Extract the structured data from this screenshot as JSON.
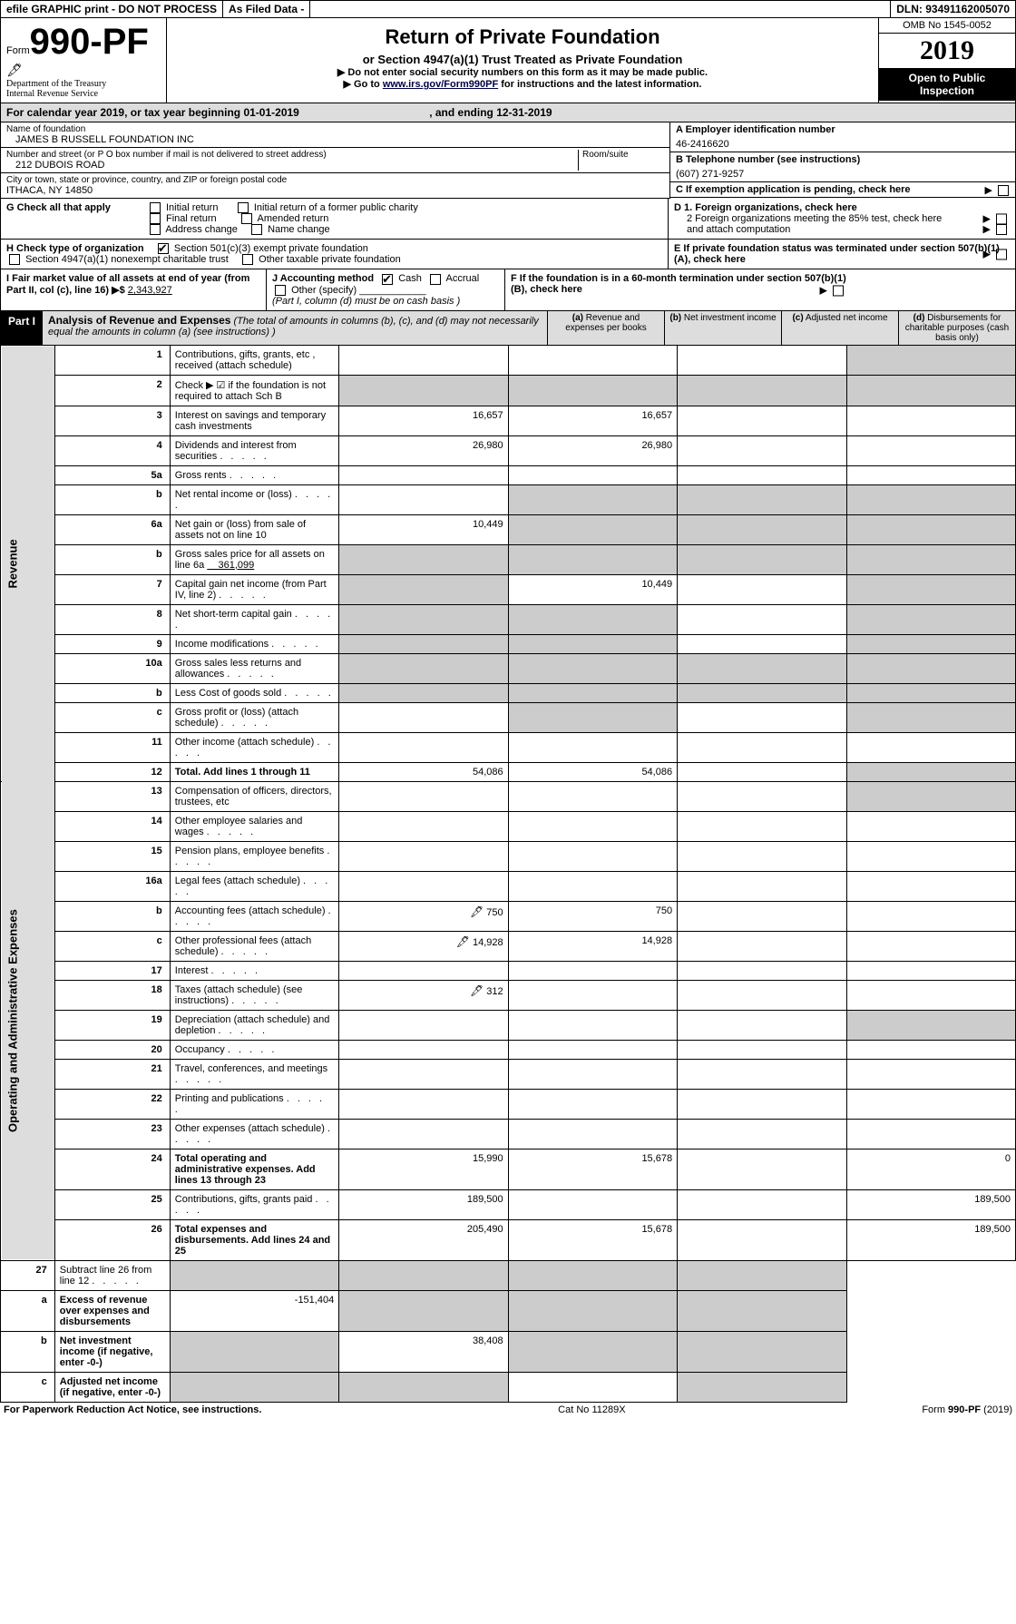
{
  "topbar": {
    "efile": "efile GRAPHIC print - DO NOT PROCESS",
    "asfiled": "As Filed Data -",
    "dln": "DLN: 93491162005070"
  },
  "header": {
    "form_word": "Form",
    "form_num": "990-PF",
    "dept1": "Department of the Treasury",
    "dept2": "Internal Revenue Service",
    "title": "Return of Private Foundation",
    "subtitle": "or Section 4947(a)(1) Trust Treated as Private Foundation",
    "instr1": "▶ Do not enter social security numbers on this form as it may be made public.",
    "instr2_pre": "▶ Go to ",
    "instr2_link": "www.irs.gov/Form990PF",
    "instr2_post": " for instructions and the latest information.",
    "omb": "OMB No 1545-0052",
    "year": "2019",
    "open": "Open to Public Inspection"
  },
  "calrow": {
    "text_pre": "For calendar year 2019, or tax year beginning ",
    "begin": "01-01-2019",
    "mid": " , and ending ",
    "end": "12-31-2019"
  },
  "info": {
    "name_label": "Name of foundation",
    "name": "JAMES B RUSSELL FOUNDATION INC",
    "addr_label": "Number and street (or P O  box number if mail is not delivered to street address)",
    "addr": "212 DUBOIS ROAD",
    "room_label": "Room/suite",
    "city_label": "City or town, state or province, country, and ZIP or foreign postal code",
    "city": "ITHACA, NY  14850",
    "a_label": "A Employer identification number",
    "a_val": "46-2416620",
    "b_label": "B Telephone number (see instructions)",
    "b_val": "(607) 271-9257",
    "c_label": "C If exemption application is pending, check here",
    "d1": "D 1. Foreign organizations, check here",
    "d2": "2 Foreign organizations meeting the 85% test, check here and attach computation",
    "e": "E  If private foundation status was terminated under section 507(b)(1)(A), check here",
    "f": "F  If the foundation is in a 60-month termination under section 507(b)(1)(B), check here"
  },
  "g": {
    "label": "G Check all that apply",
    "o1": "Initial return",
    "o2": "Initial return of a former public charity",
    "o3": "Final return",
    "o4": "Amended return",
    "o5": "Address change",
    "o6": "Name change"
  },
  "h": {
    "label": "H Check type of organization",
    "o1": "Section 501(c)(3) exempt private foundation",
    "o2": "Section 4947(a)(1) nonexempt charitable trust",
    "o3": "Other taxable private foundation"
  },
  "i": {
    "label": "I Fair market value of all assets at end of year (from Part II, col  (c), line 16) ▶$",
    "val": "2,343,927"
  },
  "j": {
    "label": "J Accounting method",
    "cash": "Cash",
    "accrual": "Accrual",
    "other": "Other (specify)",
    "note": "(Part I, column (d) must be on cash basis )"
  },
  "part1": {
    "label": "Part I",
    "title": "Analysis of Revenue and Expenses",
    "note": " (The total of amounts in columns (b), (c), and (d) may not necessarily equal the amounts in column (a) (see instructions) )",
    "col_a": "(a) Revenue and expenses per books",
    "col_b": "(b) Net investment income",
    "col_c": "(c) Adjusted net income",
    "col_d": "(d) Disbursements for charitable purposes (cash basis only)"
  },
  "revenue_label": "Revenue",
  "expenses_label": "Operating and Administrative Expenses",
  "lines": {
    "l1": {
      "n": "1",
      "d": "Contributions, gifts, grants, etc , received (attach schedule)"
    },
    "l2": {
      "n": "2",
      "d": "Check ▶ ☑ if the foundation is not required to attach Sch  B"
    },
    "l3": {
      "n": "3",
      "d": "Interest on savings and temporary cash investments",
      "a": "16,657",
      "b": "16,657"
    },
    "l4": {
      "n": "4",
      "d": "Dividends and interest from securities",
      "a": "26,980",
      "b": "26,980"
    },
    "l5a": {
      "n": "5a",
      "d": "Gross rents"
    },
    "l5b": {
      "n": "b",
      "d": "Net rental income or (loss)"
    },
    "l6a": {
      "n": "6a",
      "d": "Net gain or (loss) from sale of assets not on line 10",
      "a": "10,449"
    },
    "l6b": {
      "n": "b",
      "d": "Gross sales price for all assets on line 6a",
      "inline": "361,099"
    },
    "l7": {
      "n": "7",
      "d": "Capital gain net income (from Part IV, line 2)",
      "b": "10,449"
    },
    "l8": {
      "n": "8",
      "d": "Net short-term capital gain"
    },
    "l9": {
      "n": "9",
      "d": "Income modifications"
    },
    "l10a": {
      "n": "10a",
      "d": "Gross sales less returns and allowances"
    },
    "l10b": {
      "n": "b",
      "d": "Less  Cost of goods sold"
    },
    "l10c": {
      "n": "c",
      "d": "Gross profit or (loss) (attach schedule)"
    },
    "l11": {
      "n": "11",
      "d": "Other income (attach schedule)"
    },
    "l12": {
      "n": "12",
      "d": "Total. Add lines 1 through 11",
      "a": "54,086",
      "b": "54,086",
      "bold": true
    },
    "l13": {
      "n": "13",
      "d": "Compensation of officers, directors, trustees, etc"
    },
    "l14": {
      "n": "14",
      "d": "Other employee salaries and wages"
    },
    "l15": {
      "n": "15",
      "d": "Pension plans, employee benefits"
    },
    "l16a": {
      "n": "16a",
      "d": "Legal fees (attach schedule)"
    },
    "l16b": {
      "n": "b",
      "d": "Accounting fees (attach schedule)",
      "pig": true,
      "a": "750",
      "b": "750"
    },
    "l16c": {
      "n": "c",
      "d": "Other professional fees (attach schedule)",
      "pig": true,
      "a": "14,928",
      "b": "14,928"
    },
    "l17": {
      "n": "17",
      "d": "Interest"
    },
    "l18": {
      "n": "18",
      "d": "Taxes (attach schedule) (see instructions)",
      "pig": true,
      "a": "312"
    },
    "l19": {
      "n": "19",
      "d": "Depreciation (attach schedule) and depletion"
    },
    "l20": {
      "n": "20",
      "d": "Occupancy"
    },
    "l21": {
      "n": "21",
      "d": "Travel, conferences, and meetings"
    },
    "l22": {
      "n": "22",
      "d": "Printing and publications"
    },
    "l23": {
      "n": "23",
      "d": "Other expenses (attach schedule)"
    },
    "l24": {
      "n": "24",
      "d": "Total operating and administrative expenses. Add lines 13 through 23",
      "a": "15,990",
      "b": "15,678",
      "dd": "0",
      "bold": true
    },
    "l25": {
      "n": "25",
      "d": "Contributions, gifts, grants paid",
      "a": "189,500",
      "dd": "189,500"
    },
    "l26": {
      "n": "26",
      "d": "Total expenses and disbursements. Add lines 24 and 25",
      "a": "205,490",
      "b": "15,678",
      "dd": "189,500",
      "bold": true
    },
    "l27": {
      "n": "27",
      "d": "Subtract line 26 from line 12"
    },
    "l27a": {
      "n": "a",
      "d": "Excess of revenue over expenses and disbursements",
      "a": "-151,404",
      "bold": true
    },
    "l27b": {
      "n": "b",
      "d": "Net investment income (if negative, enter -0-)",
      "b": "38,408",
      "bold": true
    },
    "l27c": {
      "n": "c",
      "d": "Adjusted net income (if negative, enter -0-)",
      "bold": true
    }
  },
  "footer": {
    "left": "For Paperwork Reduction Act Notice, see instructions.",
    "mid": "Cat  No  11289X",
    "right": "Form 990-PF (2019)"
  }
}
